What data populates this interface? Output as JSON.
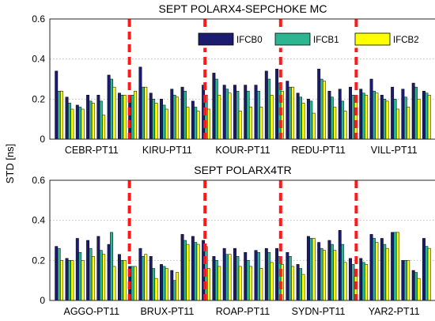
{
  "ylabel": "STD [ns]",
  "chart_data": [
    {
      "type": "bar",
      "title": "SEPT POLARX4-SEPCHOKE MC",
      "ylabel": "STD [ns]",
      "ylim": [
        0,
        0.6
      ],
      "yticks": [
        "0",
        "0.2",
        "0.4",
        "0.6"
      ],
      "grid": true,
      "legend": "top-right",
      "group_labels": [
        "CEBR-PT11",
        "KIRU-PT11",
        "KOUR-PT11",
        "REDU-PT11",
        "VILL-PT11"
      ],
      "separators_after_group": [
        1,
        2,
        3,
        4
      ],
      "series": [
        {
          "name": "IFCB0",
          "color": "#1c1c6e",
          "values": [
            0.34,
            0.21,
            0.17,
            0.22,
            0.22,
            0.32,
            0.23,
            0.21,
            0.36,
            0.23,
            0.2,
            0.25,
            0.26,
            0.19,
            0.27,
            0.33,
            0.27,
            0.27,
            0.27,
            0.27,
            0.34,
            0.35,
            0.29,
            0.23,
            0.2,
            0.35,
            0.24,
            0.25,
            0.26,
            0.25,
            0.3,
            0.22,
            0.26,
            0.25,
            0.28,
            0.24
          ]
        },
        {
          "name": "IFCB1",
          "color": "#2db592",
          "values": [
            0.24,
            0.18,
            0.16,
            0.19,
            0.19,
            0.3,
            0.22,
            0.22,
            0.26,
            0.2,
            0.17,
            0.22,
            0.24,
            0.16,
            0.22,
            0.3,
            0.25,
            0.24,
            0.24,
            0.24,
            0.3,
            0.28,
            0.26,
            0.21,
            0.19,
            0.3,
            0.21,
            0.19,
            0.22,
            0.23,
            0.24,
            0.2,
            0.2,
            0.21,
            0.26,
            0.23
          ]
        },
        {
          "name": "IFCB2",
          "color": "#ffff00",
          "values": [
            0.24,
            0.15,
            0.15,
            0.18,
            0.12,
            0.26,
            0.22,
            0.24,
            0.26,
            0.18,
            0.15,
            0.21,
            0.16,
            0.14,
            0.15,
            0.22,
            0.23,
            0.14,
            0.16,
            0.16,
            0.22,
            0.24,
            0.26,
            0.18,
            0.13,
            0.29,
            0.16,
            0.14,
            0.21,
            0.22,
            0.23,
            0.19,
            0.15,
            0.16,
            0.2,
            0.22
          ]
        }
      ]
    },
    {
      "type": "bar",
      "title": "SEPT POLARX4TR",
      "ylabel": "STD [ns]",
      "ylim": [
        0,
        0.6
      ],
      "yticks": [
        "0",
        "0.2",
        "0.4",
        "0.6"
      ],
      "grid": true,
      "group_labels": [
        "AGGO-PT11",
        "BRUX-PT11",
        "ROAP-PT11",
        "SYDN-PT11",
        "YAR2-PT11"
      ],
      "separators_after_group": [
        1,
        2,
        3,
        4
      ],
      "series": [
        {
          "name": "IFCB0",
          "color": "#1c1c6e",
          "values": [
            0.27,
            0.21,
            0.31,
            0.3,
            0.32,
            0.28,
            0.23,
            0.17,
            0.26,
            0.22,
            0.18,
            0.15,
            0.33,
            0.32,
            0.3,
            0.22,
            0.26,
            0.26,
            0.24,
            0.25,
            0.26,
            0.26,
            0.24,
            0.18,
            0.32,
            0.29,
            0.3,
            0.35,
            0.21,
            0.21,
            0.33,
            0.31,
            0.34,
            0.2,
            0.15,
            0.31
          ]
        },
        {
          "name": "IFCB1",
          "color": "#2db592",
          "values": [
            0.26,
            0.2,
            0.24,
            0.26,
            0.25,
            0.34,
            0.2,
            0.17,
            0.22,
            0.16,
            0.17,
            0.1,
            0.3,
            0.29,
            0.27,
            0.2,
            0.23,
            0.22,
            0.2,
            0.24,
            0.24,
            0.22,
            0.22,
            0.16,
            0.31,
            0.26,
            0.28,
            0.28,
            0.18,
            0.19,
            0.31,
            0.28,
            0.34,
            0.2,
            0.14,
            0.27
          ]
        },
        {
          "name": "IFCB2",
          "color": "#ffff00",
          "values": [
            0.2,
            0.2,
            0.2,
            0.22,
            0.23,
            0.17,
            0.2,
            0.17,
            0.23,
            0.11,
            0.16,
            0.14,
            0.28,
            0.28,
            0.16,
            0.17,
            0.23,
            0.17,
            0.17,
            0.16,
            0.19,
            0.18,
            0.17,
            0.13,
            0.31,
            0.25,
            0.25,
            0.19,
            0.12,
            0.18,
            0.29,
            0.26,
            0.34,
            0.2,
            0.11,
            0.26
          ]
        }
      ]
    }
  ]
}
